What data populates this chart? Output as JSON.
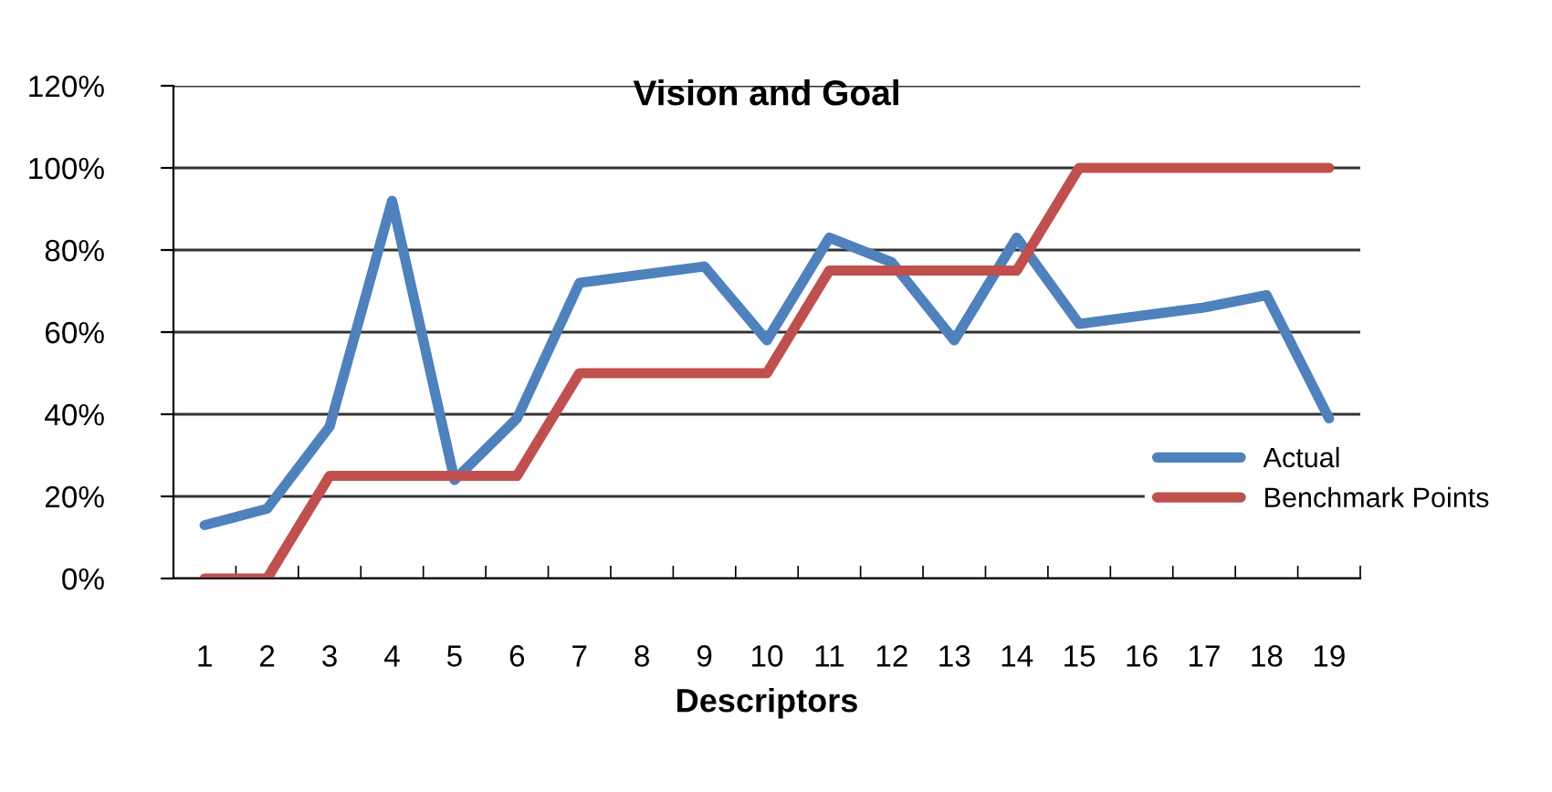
{
  "chart_data": {
    "type": "line",
    "title": "Vision and Goal",
    "xlabel": "Descriptors",
    "categories": [
      "1",
      "2",
      "3",
      "4",
      "5",
      "6",
      "7",
      "8",
      "9",
      "10",
      "11",
      "12",
      "13",
      "14",
      "15",
      "16",
      "17",
      "18",
      "19"
    ],
    "series": [
      {
        "name": "Actual",
        "color": "#4f81bd",
        "values": [
          13,
          17,
          37,
          92,
          24,
          39,
          72,
          74,
          76,
          58,
          83,
          77,
          58,
          83,
          62,
          64,
          66,
          69,
          39
        ]
      },
      {
        "name": "Benchmark Points",
        "color": "#c0504d",
        "values": [
          0,
          0,
          25,
          25,
          25,
          25,
          50,
          50,
          50,
          50,
          75,
          75,
          75,
          75,
          100,
          100,
          100,
          100,
          100
        ]
      }
    ],
    "ylim": [
      0,
      120
    ],
    "yticks": [
      {
        "value": 0,
        "label": "0%"
      },
      {
        "value": 20,
        "label": "20%"
      },
      {
        "value": 40,
        "label": "40%"
      },
      {
        "value": 60,
        "label": "60%"
      },
      {
        "value": 80,
        "label": "80%"
      },
      {
        "value": 100,
        "label": "100%"
      },
      {
        "value": 120,
        "label": "120%"
      }
    ],
    "grid": "y",
    "legend": "right",
    "marker": "none",
    "line_style": "solid"
  }
}
